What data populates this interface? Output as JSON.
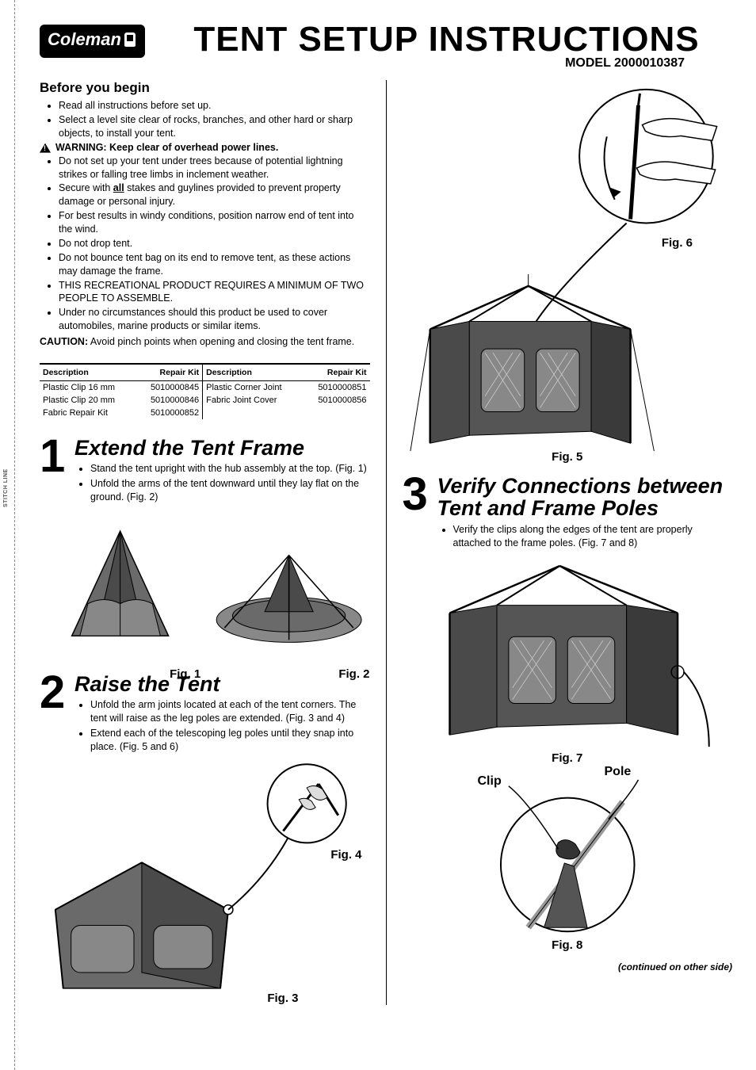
{
  "stitch_label": "STITCH LINE",
  "brand": "Coleman",
  "title": "TENT SETUP INSTRUCTIONS",
  "model": "MODEL 2000010387",
  "before": {
    "heading": "Before you begin",
    "items_pre": [
      "Read all instructions before set up.",
      "Select a level site clear of rocks, branches, and other hard or sharp objects, to install your tent."
    ],
    "warning": "WARNING: Keep clear of overhead power lines.",
    "items_post": [
      "Do not set up your tent under trees because of potential lightning strikes or falling tree limbs in inclement weather.",
      "Secure with <span class='u'><b>all</b></span> stakes and guylines provided to prevent property damage or personal injury.",
      "For best results in windy conditions, position narrow end of tent into the wind.",
      "Do not drop tent.",
      "Do not bounce tent bag on its end to remove tent, as these actions may damage the frame.",
      "THIS RECREATIONAL PRODUCT REQUIRES A MINIMUM OF TWO PEOPLE TO ASSEMBLE.",
      "Under no circumstances should this product be used to cover automobiles, marine products or similar items."
    ],
    "caution_label": "CAUTION:",
    "caution": "Avoid pinch points when opening and closing the tent frame."
  },
  "repair": {
    "col_desc": "Description",
    "col_kit": "Repair Kit",
    "left": [
      {
        "desc": "Plastic Clip 16 mm",
        "kit": "5010000845"
      },
      {
        "desc": "Plastic Clip 20 mm",
        "kit": "5010000846"
      },
      {
        "desc": "Fabric Repair Kit",
        "kit": "5010000852"
      }
    ],
    "right": [
      {
        "desc": "Plastic Corner Joint",
        "kit": "5010000851"
      },
      {
        "desc": "Fabric Joint Cover",
        "kit": "5010000856"
      }
    ]
  },
  "step1": {
    "num": "1",
    "title": "Extend the Tent Frame",
    "items": [
      "Stand the tent upright with the hub assembly at the top. (Fig. 1)",
      "Unfold the arms of the tent downward until they lay flat on the ground. (Fig. 2)"
    ]
  },
  "step2": {
    "num": "2",
    "title": "Raise the Tent",
    "items": [
      "Unfold the arm joints located at each of the tent corners. The tent will raise as the leg poles are extended. (Fig. 3 and 4)",
      "Extend each of the telescoping leg poles until they snap into place. (Fig. 5 and 6)"
    ]
  },
  "step3": {
    "num": "3",
    "title": "Verify Connections between Tent and Frame Poles",
    "items": [
      "Verify the clips along the edges of the tent are properly attached to the frame poles. (Fig. 7 and 8)"
    ]
  },
  "figs": {
    "f1": "Fig. 1",
    "f2": "Fig. 2",
    "f3": "Fig. 3",
    "f4": "Fig. 4",
    "f5": "Fig. 5",
    "f6": "Fig. 6",
    "f7": "Fig. 7",
    "f8": "Fig. 8"
  },
  "callouts": {
    "clip": "Clip",
    "pole": "Pole"
  },
  "continued": "(continued on other side)",
  "colors": {
    "tent_dark": "#4a4a4a",
    "tent_mid": "#7a7a7a",
    "tent_light": "#aaaaaa",
    "line": "#000000"
  }
}
